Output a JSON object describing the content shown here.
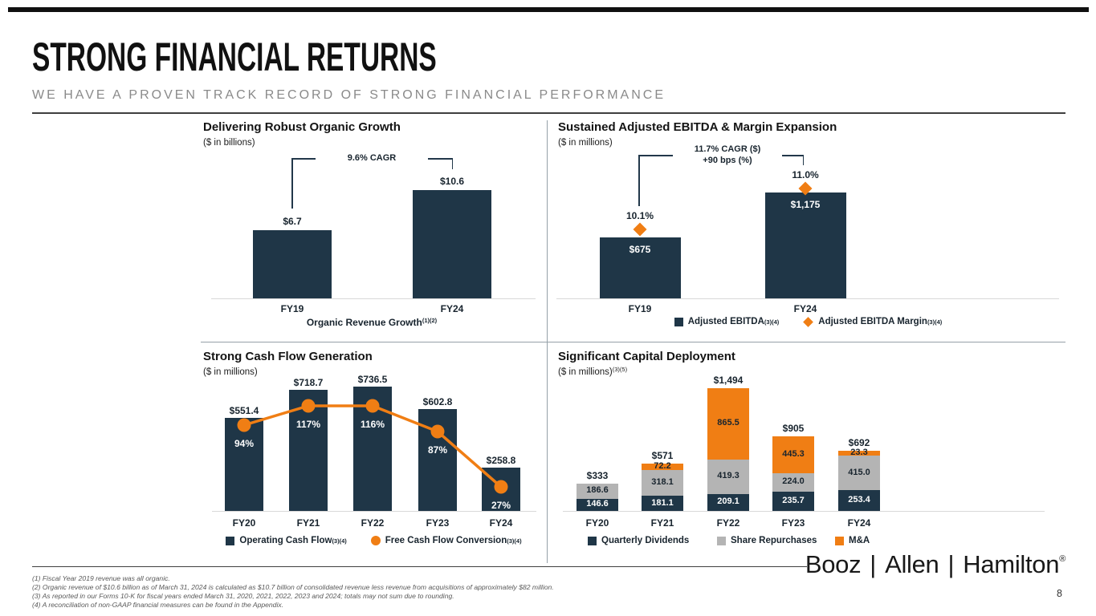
{
  "slide": {
    "title": "STRONG FINANCIAL RETURNS",
    "subtitle": "WE HAVE A PROVEN TRACK RECORD OF STRONG FINANCIAL PERFORMANCE",
    "page_number": "8",
    "logo": {
      "parts": [
        "Booz",
        "Allen",
        "Hamilton"
      ],
      "separator": "|",
      "registered": "®"
    }
  },
  "colors": {
    "navy": "#1F3647",
    "orange": "#F07E14",
    "gray": "#B4B4B4",
    "baseline": "#D8D8D8",
    "dark_text": "#18242E",
    "white_text": "#FFFFFF"
  },
  "footnotes": [
    "(1) Fiscal Year 2019 revenue was all organic.",
    "(2) Organic revenue of $10.6 billion as of March 31, 2024 is calculated as $10.7 billion of consolidated revenue less revenue from acquisitions of approximately $82 million.",
    "(3) As reported in our Forms 10-K for fiscal years ended March 31, 2020, 2021, 2022, 2023 and 2024; totals may not sum due to rounding.",
    "(4) A reconciliation of non-GAAP financial measures can be found in the Appendix."
  ],
  "chart_data": [
    {
      "type": "bar",
      "title": "Delivering Robust Organic Growth",
      "unit": "($ in billions)",
      "unit_sup": "",
      "categories": [
        "FY19",
        "FY24"
      ],
      "values": [
        6.7,
        10.6
      ],
      "value_labels": [
        "$6.7",
        "$10.6"
      ],
      "annotation": {
        "lines": [
          "9.6% CAGR"
        ]
      },
      "axis_label": {
        "text": "Organic Revenue Growth",
        "sup": "(1)(2)"
      },
      "ylim": [
        0,
        12
      ],
      "grid": false,
      "legend_position": "none"
    },
    {
      "type": "bar",
      "title": "Sustained Adjusted EBITDA & Margin Expansion",
      "unit": "($ in millions)",
      "unit_sup": "",
      "categories": [
        "FY19",
        "FY24"
      ],
      "series": [
        {
          "name": "Adjusted EBITDA",
          "sup": "(3)(4)",
          "marker": "square",
          "values": [
            675,
            1175
          ],
          "labels": [
            "$675",
            "$1,175"
          ]
        },
        {
          "name": "Adjusted EBITDA Margin",
          "sup": "(3)(4)",
          "marker": "diamond",
          "values": [
            10.1,
            11.0
          ],
          "labels": [
            "10.1%",
            "11.0%"
          ]
        }
      ],
      "annotation": {
        "lines": [
          "11.7% CAGR ($)",
          "+90 bps (%)"
        ]
      },
      "ylim": [
        0,
        1300
      ],
      "grid": false,
      "legend_position": "bottom"
    },
    {
      "type": "bar",
      "title": "Strong Cash Flow Generation",
      "unit": "($ in millions)",
      "unit_sup": "",
      "categories": [
        "FY20",
        "FY21",
        "FY22",
        "FY23",
        "FY24"
      ],
      "series": [
        {
          "name": "Operating Cash Flow",
          "sup": "(3)(4)",
          "marker": "square",
          "values": [
            551.4,
            718.7,
            736.5,
            602.8,
            258.8
          ],
          "labels": [
            "$551.4",
            "$718.7",
            "$736.5",
            "$602.8",
            "$258.8"
          ]
        },
        {
          "name": "Free Cash Flow Conversion",
          "sup": "(3)(4)",
          "marker": "circle",
          "type": "line",
          "values": [
            94,
            117,
            116,
            87,
            27
          ],
          "labels": [
            "94%",
            "117%",
            "116%",
            "87%",
            "27%"
          ]
        }
      ],
      "ylim": [
        0,
        800
      ],
      "grid": false,
      "legend_position": "bottom"
    },
    {
      "type": "bar",
      "subtype": "stacked",
      "title": "Significant Capital Deployment",
      "unit": "($ in millions)",
      "unit_sup": "(3)(5)",
      "categories": [
        "FY20",
        "FY21",
        "FY22",
        "FY23",
        "FY24"
      ],
      "series": [
        {
          "name": "Quarterly Dividends",
          "color_key": "navy",
          "values": [
            146.6,
            181.1,
            209.1,
            235.7,
            253.4
          ],
          "labels": [
            "146.6",
            "181.1",
            "209.1",
            "235.7",
            "253.4"
          ]
        },
        {
          "name": "Share Repurchases",
          "color_key": "gray",
          "values": [
            186.6,
            318.1,
            419.3,
            224.0,
            415.0
          ],
          "labels": [
            "186.6",
            "318.1",
            "419.3",
            "224.0",
            "415.0"
          ]
        },
        {
          "name": "M&A",
          "color_key": "orange",
          "values": [
            0,
            72.2,
            865.5,
            445.3,
            23.3
          ],
          "labels": [
            "",
            "72.2",
            "865.5",
            "445.3",
            "23.3"
          ]
        }
      ],
      "total_labels": [
        "$333",
        "$571",
        "$1,494",
        "$905",
        "$692"
      ],
      "ylim": [
        0,
        1600
      ],
      "grid": false,
      "legend_position": "bottom"
    }
  ]
}
